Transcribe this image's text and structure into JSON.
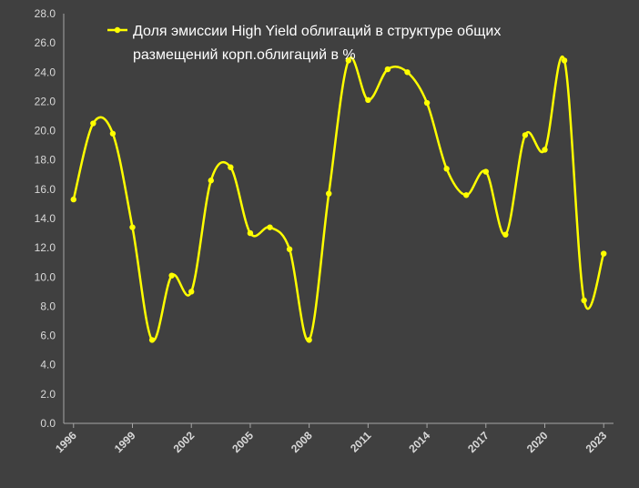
{
  "chart_data": {
    "type": "line",
    "title": "",
    "xlabel": "",
    "ylabel": "",
    "x": [
      1996,
      1997,
      1998,
      1999,
      2000,
      2001,
      2002,
      2003,
      2004,
      2005,
      2006,
      2007,
      2008,
      2009,
      2010,
      2011,
      2012,
      2013,
      2014,
      2015,
      2016,
      2017,
      2018,
      2019,
      2020,
      2021,
      2022,
      2023
    ],
    "x_tick_labels": [
      "1996",
      "1999",
      "2002",
      "2005",
      "2008",
      "2011",
      "2014",
      "2017",
      "2020",
      "2023"
    ],
    "y_tick_labels": [
      "0.0",
      "2.0",
      "4.0",
      "6.0",
      "8.0",
      "10.0",
      "12.0",
      "14.0",
      "16.0",
      "18.0",
      "20.0",
      "22.0",
      "24.0",
      "26.0",
      "28.0"
    ],
    "ylim": [
      0,
      28
    ],
    "y_step": 2,
    "grid": false,
    "legend_position": "top-center",
    "series": [
      {
        "name": "Доля эмиссии High Yield облигаций в структуре общих размещений корп.облигаций в %",
        "legend_lines": [
          "Доля эмиссии High Yield облигаций в структуре общих",
          "размещений корп.облигаций в %"
        ],
        "color": "#ffff00",
        "values": [
          15.3,
          20.5,
          19.8,
          13.4,
          5.7,
          10.1,
          9.0,
          16.6,
          17.5,
          13.0,
          13.4,
          11.9,
          5.7,
          15.7,
          24.8,
          22.1,
          24.2,
          24.0,
          21.9,
          17.4,
          15.6,
          17.2,
          12.9,
          19.7,
          18.7,
          24.8,
          8.4,
          11.6
        ]
      }
    ]
  },
  "colors": {
    "background": "#404040",
    "axis": "#a6a6a6",
    "tick_text": "#d9d9d9",
    "legend_text": "#ffffff",
    "line": "#ffff00"
  }
}
